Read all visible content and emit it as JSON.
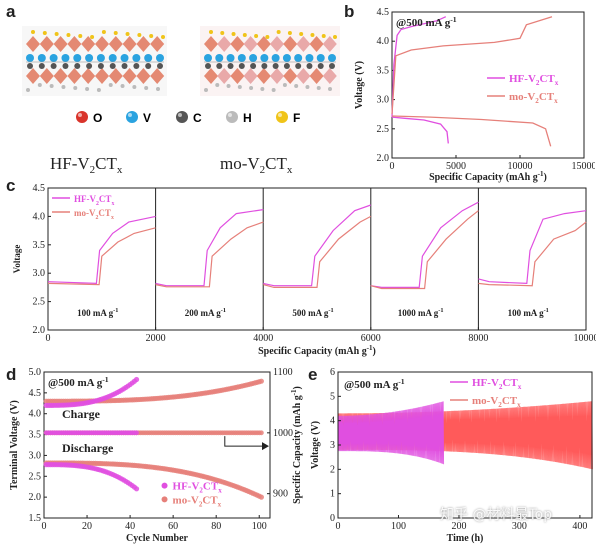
{
  "panel_a": {
    "label": "a",
    "elements": [
      {
        "symbol": "O",
        "color": "#d9342b"
      },
      {
        "symbol": "V",
        "color": "#2aa3e0"
      },
      {
        "symbol": "C",
        "color": "#555555"
      },
      {
        "symbol": "H",
        "color": "#bbbbbb"
      },
      {
        "symbol": "F",
        "color": "#f0c419"
      }
    ],
    "structure_left": "HF-V",
    "structure_right": "mo-V",
    "sub2": "2",
    "ct": "CT",
    "subx": "x"
  },
  "watermark": "知乎 @材料最Top",
  "chart_data": [
    {
      "panel": "b",
      "type": "line",
      "annotation": "@500 mA g",
      "annotation_sup": "-1",
      "xlabel": "Specific Capacity (mAh g",
      "xlabel_sup": "-1",
      "xlabel_end": ")",
      "ylabel": "Voltage (V)",
      "xlim": [
        0,
        15000
      ],
      "ylim": [
        2.0,
        4.5
      ],
      "xticks": [
        "0",
        "5000",
        "10000",
        "15000"
      ],
      "yticks": [
        "2.0",
        "2.5",
        "3.0",
        "3.5",
        "4.0",
        "4.5"
      ],
      "legend": [
        {
          "name": "HF-V",
          "sub": "2",
          "mid": "CT",
          "sub2": "x",
          "color": "#e04fe0"
        },
        {
          "name": "mo-V",
          "sub": "2",
          "mid": "CT",
          "sub2": "x",
          "color": "#e6807a"
        }
      ],
      "series": [
        {
          "name": "HF-V2CTx charge",
          "color": "#e04fe0",
          "points": [
            [
              0,
              2.7
            ],
            [
              150,
              3.6
            ],
            [
              400,
              4.1
            ],
            [
              700,
              4.2
            ],
            [
              1500,
              4.25
            ],
            [
              2500,
              4.3
            ],
            [
              3500,
              4.35
            ],
            [
              4200,
              4.42
            ]
          ]
        },
        {
          "name": "HF-V2CTx discharge",
          "color": "#e04fe0",
          "points": [
            [
              0,
              2.7
            ],
            [
              1000,
              2.68
            ],
            [
              2500,
              2.65
            ],
            [
              3800,
              2.58
            ],
            [
              4300,
              2.45
            ],
            [
              4400,
              2.25
            ]
          ]
        },
        {
          "name": "mo-V2CTx charge",
          "color": "#e6807a",
          "points": [
            [
              0,
              2.75
            ],
            [
              300,
              3.75
            ],
            [
              1500,
              3.85
            ],
            [
              4000,
              3.92
            ],
            [
              8000,
              3.98
            ],
            [
              10000,
              4.05
            ],
            [
              10500,
              4.28
            ],
            [
              11500,
              4.35
            ],
            [
              12500,
              4.42
            ]
          ]
        },
        {
          "name": "mo-V2CTx discharge",
          "color": "#e6807a",
          "points": [
            [
              0,
              2.72
            ],
            [
              3000,
              2.7
            ],
            [
              7000,
              2.66
            ],
            [
              11000,
              2.6
            ],
            [
              12000,
              2.5
            ],
            [
              12400,
              2.2
            ]
          ]
        }
      ]
    },
    {
      "panel": "c",
      "type": "line",
      "xlabel": "Specific Capacity (mAh g",
      "xlabel_sup": "-1",
      "xlabel_end": ")",
      "ylabel": "Voltage",
      "xlim": [
        0,
        10000
      ],
      "ylim": [
        2.0,
        4.5
      ],
      "xticks": [
        "0",
        "2000",
        "4000",
        "6000",
        "8000",
        "10000"
      ],
      "yticks": [
        "2.0",
        "2.5",
        "3.0",
        "3.5",
        "4.0",
        "4.5"
      ],
      "rate_labels": [
        "100 mA g",
        "200 mA g",
        "500 mA g",
        "1000 mA g",
        "100 mA g"
      ],
      "rate_sup": "-1",
      "segment_bounds": [
        0,
        2000,
        4000,
        6000,
        8000,
        10000
      ],
      "legend": [
        {
          "name": "HF-V",
          "sub": "2",
          "mid": "CT",
          "sub2": "x",
          "color": "#e04fe0"
        },
        {
          "name": "mo-V",
          "sub": "2",
          "mid": "CT",
          "sub2": "x",
          "color": "#e6807a"
        }
      ],
      "series": [
        {
          "name": "HF-V2CTx",
          "color": "#e04fe0",
          "segments": [
            [
              [
                0,
                2.85
              ],
              [
                900,
                2.82
              ],
              [
                960,
                3.4
              ],
              [
                1200,
                3.7
              ],
              [
                1500,
                3.9
              ],
              [
                2000,
                4.0
              ]
            ],
            [
              [
                2000,
                2.82
              ],
              [
                2200,
                2.78
              ],
              [
                2900,
                2.78
              ],
              [
                2960,
                3.4
              ],
              [
                3200,
                3.8
              ],
              [
                3500,
                4.05
              ],
              [
                4000,
                4.12
              ]
            ],
            [
              [
                4000,
                2.82
              ],
              [
                4200,
                2.78
              ],
              [
                4900,
                2.78
              ],
              [
                4960,
                3.3
              ],
              [
                5300,
                3.75
              ],
              [
                5700,
                4.1
              ],
              [
                6000,
                4.2
              ]
            ],
            [
              [
                6000,
                2.78
              ],
              [
                6200,
                2.75
              ],
              [
                6900,
                2.75
              ],
              [
                6960,
                3.3
              ],
              [
                7300,
                3.8
              ],
              [
                7700,
                4.1
              ],
              [
                8000,
                4.25
              ]
            ],
            [
              [
                8000,
                2.9
              ],
              [
                8200,
                2.85
              ],
              [
                8900,
                2.82
              ],
              [
                8960,
                3.4
              ],
              [
                9200,
                3.95
              ],
              [
                9600,
                4.05
              ],
              [
                10000,
                4.1
              ]
            ]
          ]
        },
        {
          "name": "mo-V2CTx",
          "color": "#e6807a",
          "segments": [
            [
              [
                0,
                2.82
              ],
              [
                950,
                2.8
              ],
              [
                1000,
                3.3
              ],
              [
                1300,
                3.55
              ],
              [
                1600,
                3.7
              ],
              [
                2000,
                3.8
              ]
            ],
            [
              [
                2000,
                2.8
              ],
              [
                2200,
                2.76
              ],
              [
                3000,
                2.76
              ],
              [
                3050,
                3.3
              ],
              [
                3400,
                3.6
              ],
              [
                3700,
                3.8
              ],
              [
                4000,
                3.9
              ]
            ],
            [
              [
                4000,
                2.8
              ],
              [
                4200,
                2.75
              ],
              [
                5000,
                2.75
              ],
              [
                5050,
                3.2
              ],
              [
                5400,
                3.6
              ],
              [
                5800,
                3.9
              ],
              [
                6000,
                4.0
              ]
            ],
            [
              [
                6000,
                2.78
              ],
              [
                6200,
                2.73
              ],
              [
                7000,
                2.73
              ],
              [
                7050,
                3.2
              ],
              [
                7400,
                3.6
              ],
              [
                7800,
                3.95
              ],
              [
                8000,
                4.1
              ]
            ],
            [
              [
                8000,
                2.82
              ],
              [
                8200,
                2.8
              ],
              [
                9000,
                2.78
              ],
              [
                9050,
                3.2
              ],
              [
                9400,
                3.6
              ],
              [
                9800,
                3.75
              ],
              [
                10000,
                3.9
              ]
            ]
          ]
        }
      ]
    },
    {
      "panel": "d",
      "type": "scatter",
      "annotation": "@500 mA g",
      "annotation_sup": "-1",
      "xlabel": "Cycle Number",
      "ylabel_left": "Terminal Voltage (V)",
      "ylabel_right": "Specific Capacity (mAh g",
      "ylabel_right_sup": "-1",
      "ylabel_right_end": ")",
      "xlim": [
        0,
        105
      ],
      "ylim_left": [
        1.5,
        5.0
      ],
      "ylim_right": [
        860,
        1100
      ],
      "xticks": [
        "0",
        "20",
        "40",
        "60",
        "80",
        "100"
      ],
      "yticks_left": [
        "1.5",
        "2.0",
        "2.5",
        "3.0",
        "3.5",
        "4.0",
        "4.5",
        "5.0"
      ],
      "yticks_right": [
        "900",
        "1000",
        "1100"
      ],
      "charge_label": "Charge",
      "discharge_label": "Discharge",
      "legend": [
        {
          "name": "HF-V",
          "sub": "2",
          "mid": "CT",
          "sub2": "x",
          "color": "#e04fe0"
        },
        {
          "name": "mo-V",
          "sub": "2",
          "mid": "CT",
          "sub2": "x",
          "color": "#e6807a"
        }
      ],
      "series": [
        {
          "name": "HF-V2CTx charge",
          "color": "#e04fe0",
          "x_end": 43,
          "start": 4.2,
          "end": 4.82
        },
        {
          "name": "HF-V2CTx discharge",
          "color": "#e04fe0",
          "x_end": 43,
          "start": 2.78,
          "end": 2.2
        },
        {
          "name": "mo-V2CTx charge",
          "color": "#e6807a",
          "x_end": 101,
          "start": 4.3,
          "end": 4.78
        },
        {
          "name": "mo-V2CTx discharge",
          "color": "#e6807a",
          "x_end": 101,
          "start": 2.82,
          "end": 2.0
        },
        {
          "name": "HF-V2CTx capacity",
          "color": "#e04fe0",
          "x_end": 43,
          "value": 1000
        },
        {
          "name": "mo-V2CTx capacity",
          "color": "#e6807a",
          "x_end": 101,
          "value": 1000
        }
      ]
    },
    {
      "panel": "e",
      "type": "line",
      "annotation": "@500 mA g",
      "annotation_sup": "-1",
      "xlabel": "Time (h)",
      "ylabel": "Voltage (V)",
      "xlim": [
        0,
        420
      ],
      "ylim": [
        0,
        6
      ],
      "xticks": [
        "0",
        "100",
        "200",
        "300",
        "400"
      ],
      "yticks": [
        "0",
        "1",
        "2",
        "3",
        "4",
        "5",
        "6"
      ],
      "legend": [
        {
          "name": "HF-V",
          "sub": "2",
          "mid": "CT",
          "sub2": "x",
          "color": "#e04fe0"
        },
        {
          "name": "mo-V",
          "sub": "2",
          "mid": "CT",
          "sub2": "x",
          "color": "#e6807a"
        }
      ],
      "series": [
        {
          "name": "HF-V2CTx",
          "color": "#e04fe0",
          "t_end": 175,
          "upper": [
            4.2,
            4.8
          ],
          "lower": [
            2.75,
            2.2
          ]
        },
        {
          "name": "mo-V2CTx",
          "color": "#ff5a5a",
          "t_end": 420,
          "upper": [
            4.3,
            4.8
          ],
          "lower": [
            2.8,
            2.0
          ]
        }
      ]
    }
  ]
}
